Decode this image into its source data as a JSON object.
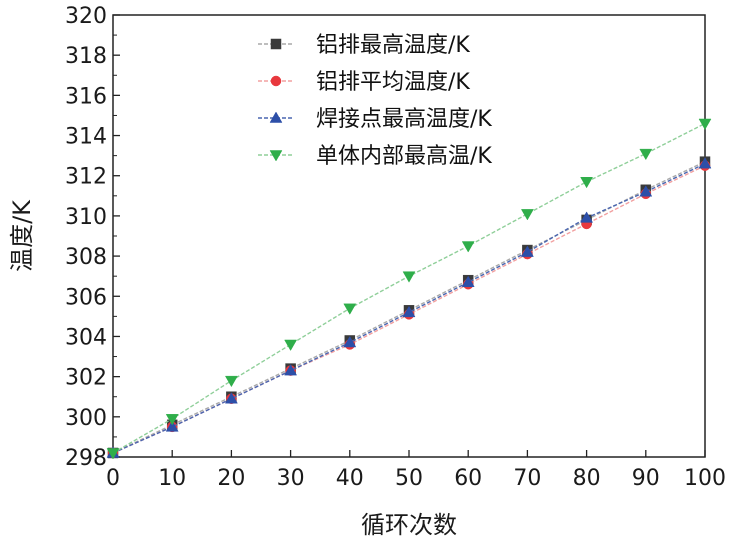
{
  "chart_data": {
    "type": "line",
    "xlabel": "循环次数",
    "ylabel": "温度/K",
    "xlim": [
      0,
      100
    ],
    "ylim": [
      298,
      320
    ],
    "xticks": [
      0,
      10,
      20,
      30,
      40,
      50,
      60,
      70,
      80,
      90,
      100
    ],
    "yticks": [
      298,
      300,
      302,
      304,
      306,
      308,
      310,
      312,
      314,
      316,
      318,
      320
    ],
    "x": [
      0,
      10,
      20,
      30,
      40,
      50,
      60,
      70,
      80,
      90,
      100
    ],
    "legend_position": "top-right",
    "grid": false,
    "series": [
      {
        "name": "铝排最高温度/K",
        "marker": "square",
        "color": "#3a3a3a",
        "line_color": "#a9a9a9",
        "values": [
          298.2,
          299.6,
          301.0,
          302.4,
          303.8,
          305.3,
          306.8,
          308.3,
          309.8,
          311.3,
          312.7
        ]
      },
      {
        "name": "铝排平均温度/K",
        "marker": "circle",
        "color": "#e8383d",
        "line_color": "#f2a0a0",
        "values": [
          298.2,
          299.5,
          300.9,
          302.3,
          303.6,
          305.1,
          306.6,
          308.1,
          309.6,
          311.1,
          312.5
        ]
      },
      {
        "name": "焊接点最高温度/K",
        "marker": "triangle-up",
        "color": "#2d4fa8",
        "line_color": "#4a66b0",
        "values": [
          298.2,
          299.5,
          300.9,
          302.3,
          303.7,
          305.2,
          306.7,
          308.2,
          309.9,
          311.2,
          312.6
        ]
      },
      {
        "name": "单体内部最高温/K",
        "marker": "triangle-down",
        "color": "#2fae4a",
        "line_color": "#8fcf99",
        "values": [
          298.2,
          299.9,
          301.8,
          303.6,
          305.4,
          307.0,
          308.5,
          310.1,
          311.7,
          313.1,
          314.6
        ]
      }
    ]
  }
}
